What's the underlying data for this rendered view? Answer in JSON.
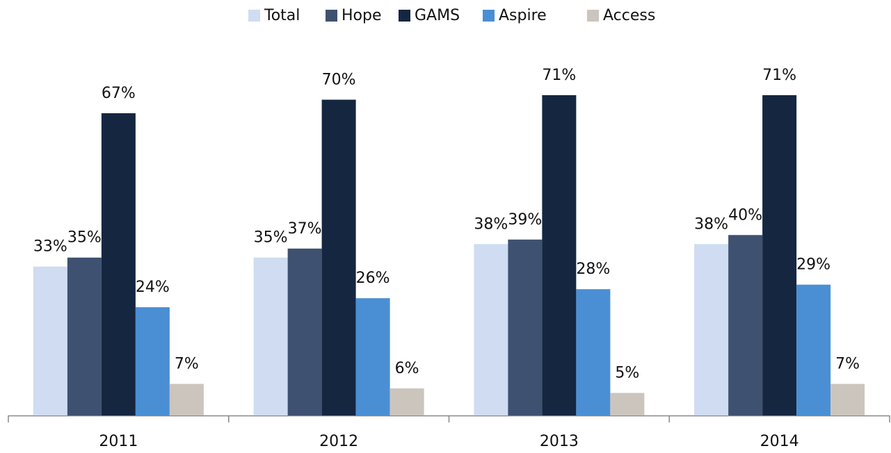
{
  "chart_data": {
    "type": "bar",
    "categories": [
      "2011",
      "2012",
      "2013",
      "2014"
    ],
    "series": [
      {
        "name": "Total",
        "color": "#cfdcf2",
        "values": [
          33,
          35,
          38,
          38
        ],
        "value_labels": [
          "33%",
          "35%",
          "38%",
          "38%"
        ]
      },
      {
        "name": "Hope",
        "color": "#3e5170",
        "values": [
          35,
          37,
          39,
          40
        ],
        "value_labels": [
          "35%",
          "37%",
          "39%",
          "40%"
        ]
      },
      {
        "name": "GAMS",
        "color": "#152641",
        "values": [
          67,
          70,
          71,
          71
        ],
        "value_labels": [
          "67%",
          "70%",
          "71%",
          "71%"
        ]
      },
      {
        "name": "Aspire",
        "color": "#4a8fd4",
        "values": [
          24,
          26,
          28,
          29
        ],
        "value_labels": [
          "24%",
          "26%",
          "28%",
          "29%"
        ]
      },
      {
        "name": "Access",
        "color": "#ccc5be",
        "values": [
          7,
          6,
          5,
          7
        ],
        "value_labels": [
          "7%",
          "6%",
          "5%",
          "7%"
        ]
      }
    ],
    "legend": "top"
  }
}
